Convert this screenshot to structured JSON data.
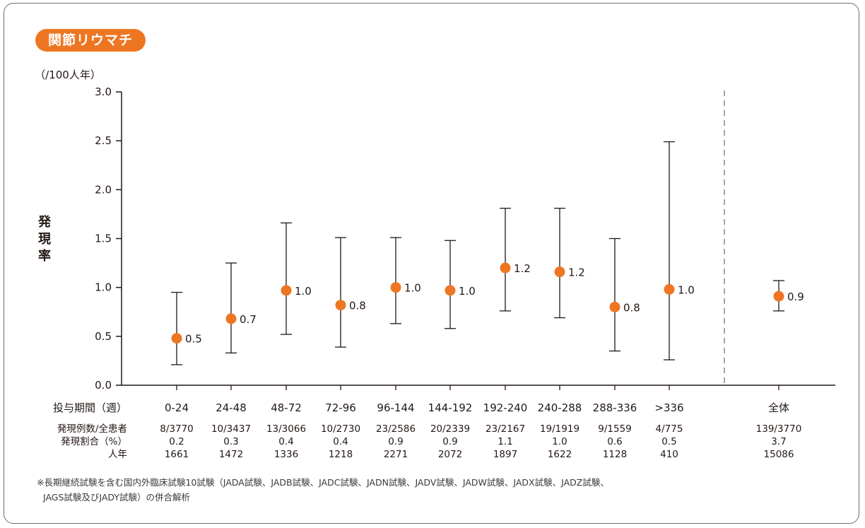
{
  "badge": "関節リウマチ",
  "footnote_line1": "※長期継続試験を含む国内外臨床試験10試験（JADA試験、JADB試験、JADC試験、JADN試験、JADV試験、JADW試験、JADX試験、JADZ試験、",
  "footnote_line2": "JAGS試験及びJADY試験）の併合解析",
  "colors": {
    "marker": "#ee7623",
    "badge": "#ee7623",
    "axis": "#231815",
    "divider": "#888888"
  },
  "chart_data": {
    "type": "scatter",
    "ylabel": "発現率",
    "yunit": "（/100人年）",
    "ylim": [
      0,
      3.0
    ],
    "yticks": [
      "0.0",
      "0.5",
      "1.0",
      "1.5",
      "2.0",
      "2.5",
      "3.0"
    ],
    "grid": false,
    "categories_header": "投与期間（週）",
    "categories": [
      "0-24",
      "24-48",
      "48-72",
      "72-96",
      "96-144",
      "144-192",
      "192-240",
      "240-288",
      "288-336",
      ">336",
      "全体"
    ],
    "values": [
      0.48,
      0.68,
      0.97,
      0.82,
      1.0,
      0.97,
      1.2,
      1.16,
      0.8,
      0.98,
      0.91
    ],
    "value_labels": [
      "0.5",
      "0.7",
      "1.0",
      "0.8",
      "1.0",
      "1.0",
      "1.2",
      "1.2",
      "0.8",
      "1.0",
      "0.9"
    ],
    "ci_lower": [
      0.21,
      0.33,
      0.52,
      0.39,
      0.63,
      0.58,
      0.76,
      0.69,
      0.35,
      0.26,
      0.76
    ],
    "ci_upper": [
      0.95,
      1.25,
      1.66,
      1.51,
      1.51,
      1.48,
      1.81,
      1.81,
      1.5,
      2.49,
      1.07
    ],
    "table": {
      "rows": [
        {
          "label": "発現例数/全患者",
          "values": [
            "8/3770",
            "10/3437",
            "13/3066",
            "10/2730",
            "23/2586",
            "20/2339",
            "23/2167",
            "19/1919",
            "9/1559",
            "4/775",
            "139/3770"
          ]
        },
        {
          "label": "発現割合（%）",
          "values": [
            "0.2",
            "0.3",
            "0.4",
            "0.4",
            "0.9",
            "0.9",
            "1.1",
            "1.0",
            "0.6",
            "0.5",
            "3.7"
          ]
        },
        {
          "label": "人年",
          "values": [
            "1661",
            "1472",
            "1336",
            "1218",
            "2271",
            "2072",
            "1897",
            "1622",
            "1128",
            "410",
            "15086"
          ]
        }
      ]
    }
  }
}
